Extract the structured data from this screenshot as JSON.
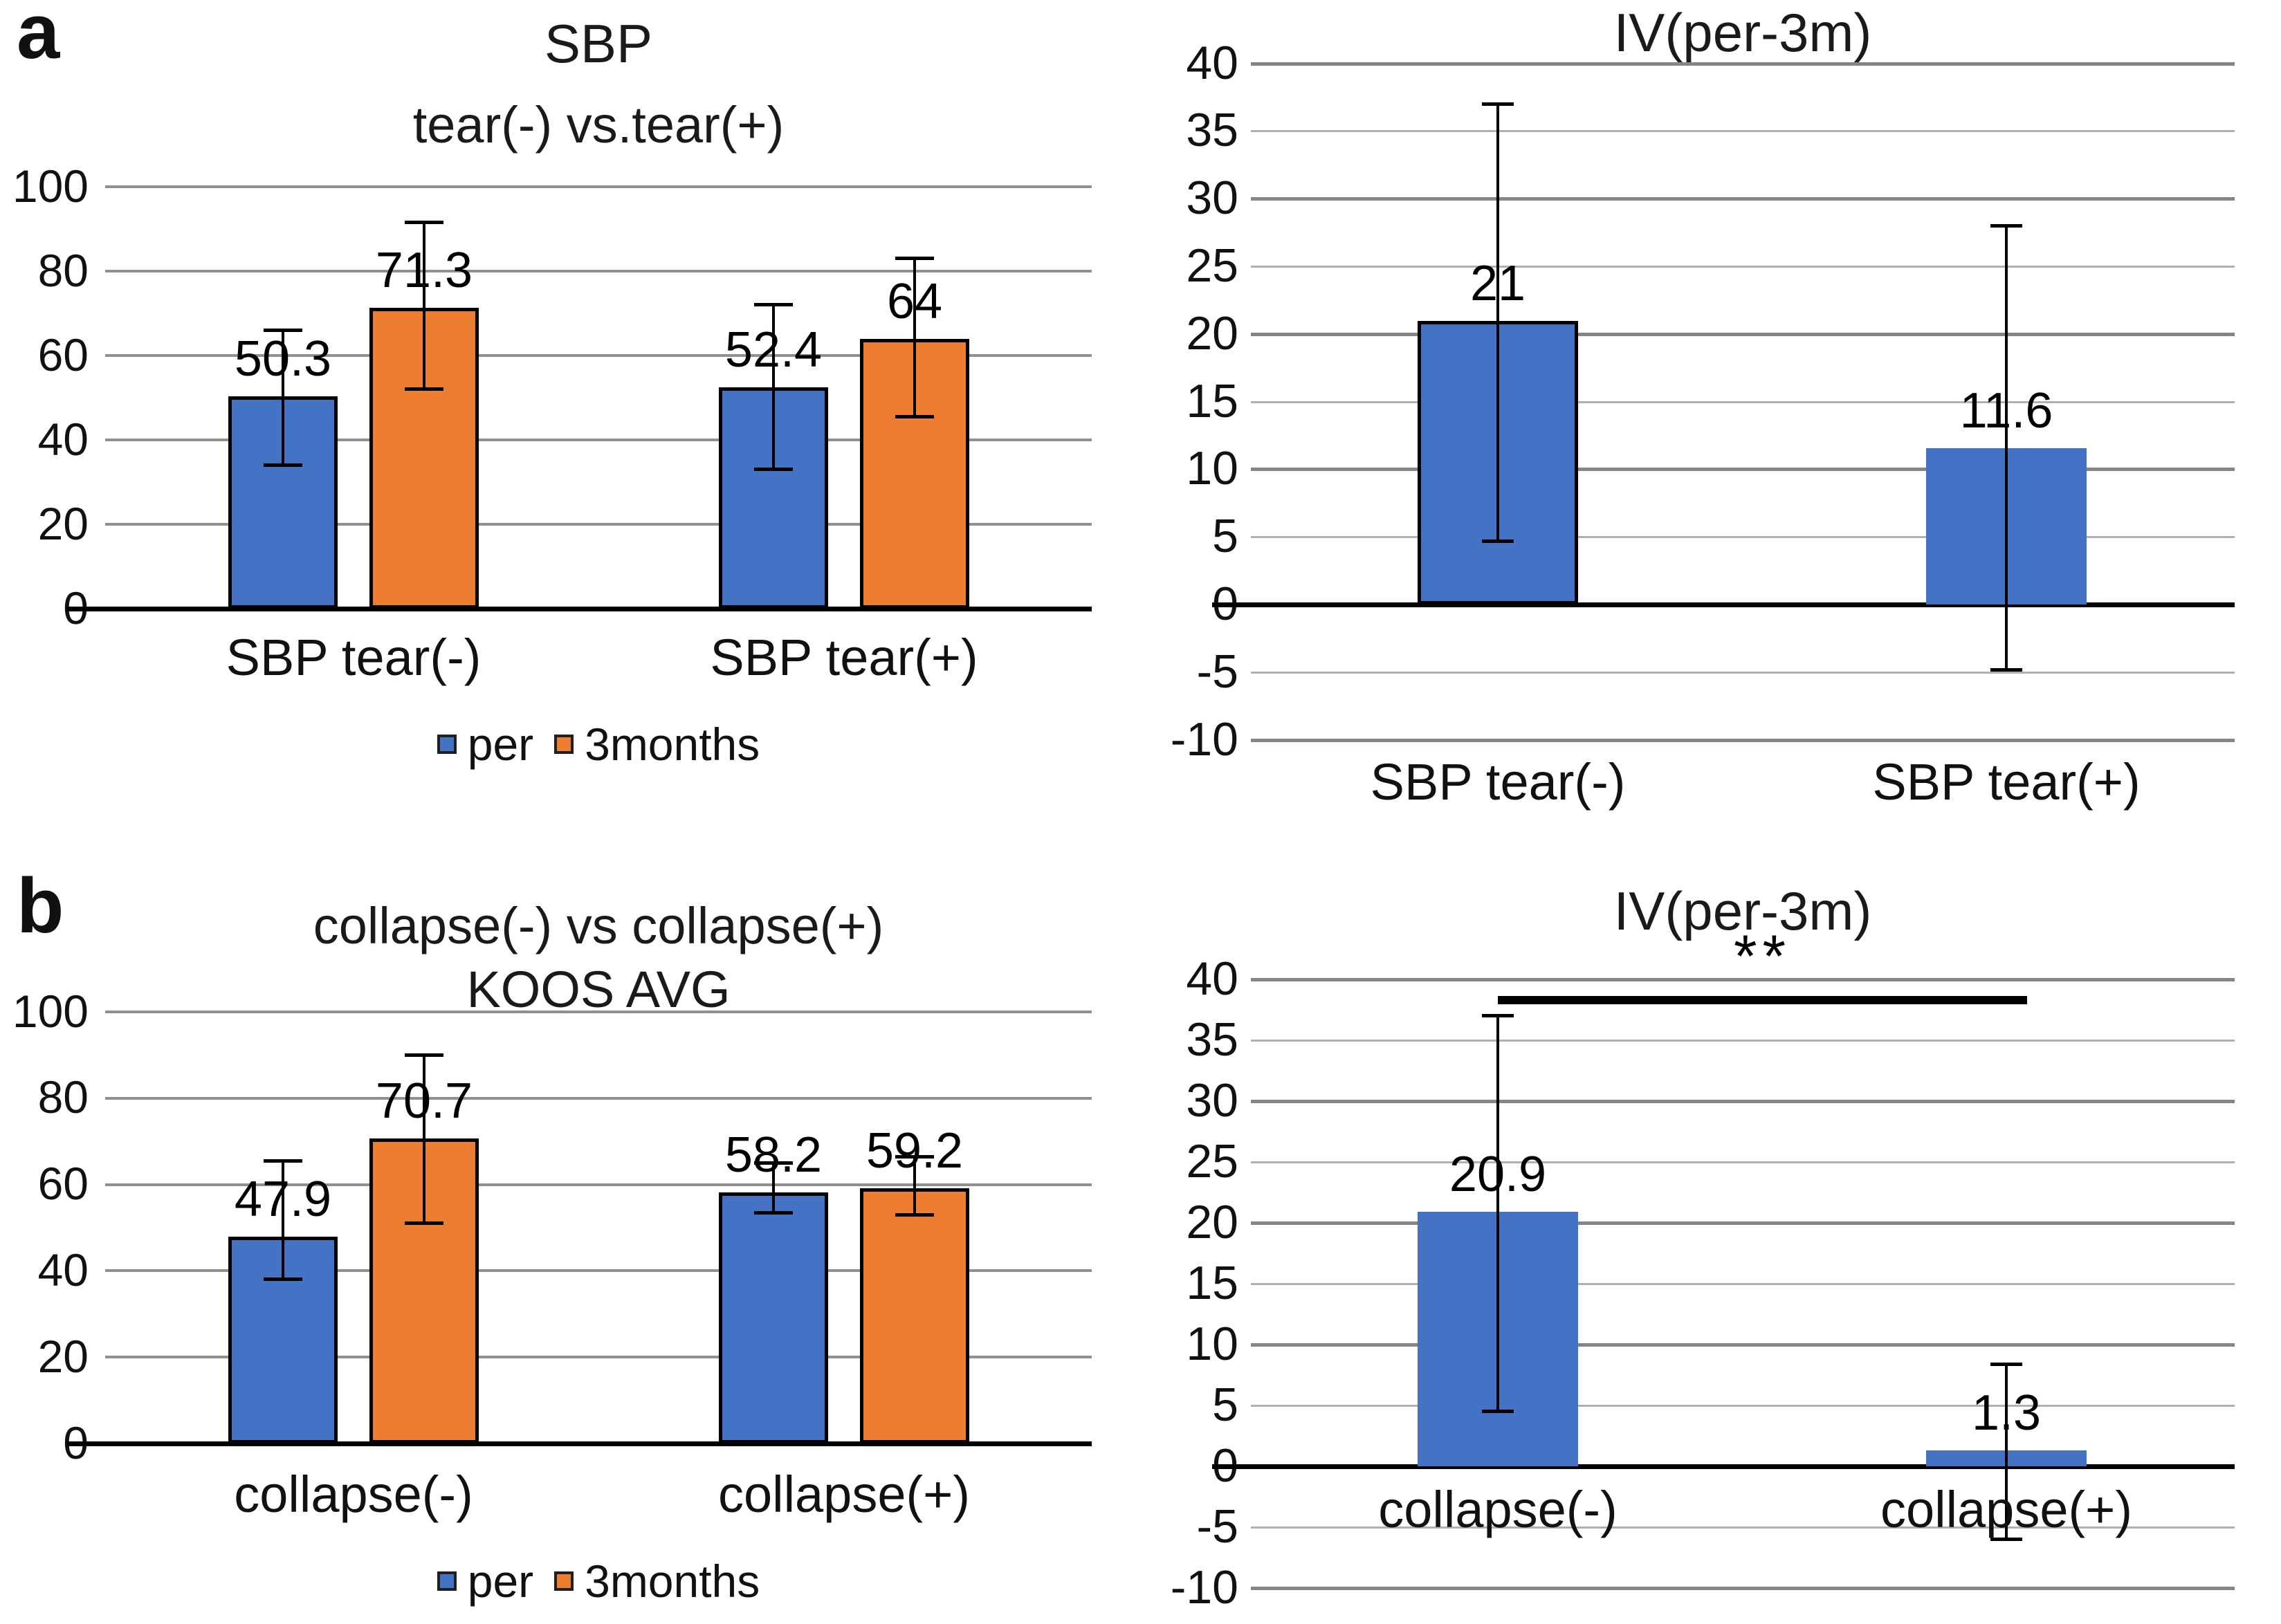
{
  "panels": {
    "a_label": "a",
    "b_label": "b"
  },
  "colors": {
    "per": "#4472C4",
    "three_months": "#ED7D31",
    "grid_major": "#858585",
    "grid_minor": "#b0b0b0",
    "grid_left": "#909090",
    "axis": "#000000",
    "error_bar": "#000000",
    "significance": "#000000"
  },
  "legend": {
    "per_label": "per",
    "three_months_label": "3months"
  },
  "chart_data": [
    {
      "type": "bar",
      "panel": "a",
      "position": "top-left",
      "title": "SBP",
      "subtitle": "tear(-) vs.tear(+)",
      "categories": [
        "SBP tear(-)",
        "SBP tear(+)"
      ],
      "series": [
        {
          "name": "per",
          "color": "#4472C4",
          "values": [
            50.3,
            52.4
          ],
          "labels": [
            "50.3",
            "52.4"
          ],
          "error_low": [
            34,
            33
          ],
          "error_high": [
            66,
            72
          ],
          "outlined": [
            true,
            true
          ]
        },
        {
          "name": "3months",
          "color": "#ED7D31",
          "values": [
            71.3,
            64
          ],
          "labels": [
            "71.3",
            "64"
          ],
          "error_low": [
            52,
            45.5
          ],
          "error_high": [
            91.5,
            83
          ],
          "outlined": [
            true,
            true
          ]
        }
      ],
      "ylim": [
        0,
        100
      ],
      "yticks": [
        0,
        20,
        40,
        60,
        80,
        100
      ],
      "grid": true,
      "legend_position": "bottom"
    },
    {
      "type": "bar",
      "panel": "a",
      "position": "top-right",
      "title": "IV(per-3m)",
      "categories": [
        "SBP tear(-)",
        "SBP tear(+)"
      ],
      "series": [
        {
          "name": "IV(per-3m)",
          "color": "#4472C4",
          "values": [
            21,
            11.6
          ],
          "labels": [
            "21",
            "11.6"
          ],
          "error_low": [
            4.7,
            -4.8
          ],
          "error_high": [
            37,
            28
          ],
          "outlined": [
            true,
            false
          ]
        }
      ],
      "ylim": [
        -10,
        40
      ],
      "yticks": [
        -10,
        -5,
        0,
        5,
        10,
        15,
        20,
        25,
        30,
        35,
        40
      ],
      "grid": true,
      "legend_position": "none"
    },
    {
      "type": "bar",
      "panel": "b",
      "position": "bottom-left",
      "title": "collapse(-) vs collapse(+)",
      "subtitle": "KOOS AVG",
      "categories": [
        "collapse(-)",
        "collapse(+)"
      ],
      "series": [
        {
          "name": "per",
          "color": "#4472C4",
          "values": [
            47.9,
            58.2
          ],
          "labels": [
            "47.9",
            "58.2"
          ],
          "error_low": [
            38,
            53.5
          ],
          "error_high": [
            65.5,
            65
          ],
          "outlined": [
            true,
            true
          ]
        },
        {
          "name": "3months",
          "color": "#ED7D31",
          "values": [
            70.7,
            59.2
          ],
          "labels": [
            "70.7",
            "59.2"
          ],
          "error_low": [
            51,
            53
          ],
          "error_high": [
            90,
            66.5
          ],
          "outlined": [
            true,
            true
          ]
        }
      ],
      "ylim": [
        0,
        100
      ],
      "yticks": [
        0,
        20,
        40,
        60,
        80,
        100
      ],
      "grid": true,
      "legend_position": "bottom"
    },
    {
      "type": "bar",
      "panel": "b",
      "position": "bottom-right",
      "title": "IV(per-3m)",
      "categories": [
        "collapse(-)",
        "collapse(+)"
      ],
      "series": [
        {
          "name": "IV(per-3m)",
          "color": "#4472C4",
          "values": [
            20.9,
            1.3
          ],
          "labels": [
            "20.9",
            "1.3"
          ],
          "error_low": [
            4.5,
            -6
          ],
          "error_high": [
            37,
            8.4
          ],
          "outlined": [
            false,
            false
          ]
        }
      ],
      "ylim": [
        -10,
        40
      ],
      "yticks": [
        -10,
        -5,
        0,
        5,
        10,
        15,
        20,
        25,
        30,
        35,
        40
      ],
      "grid": true,
      "legend_position": "none",
      "significance": {
        "text": "**",
        "between": [
          0,
          1
        ],
        "y": 38.3
      }
    }
  ]
}
